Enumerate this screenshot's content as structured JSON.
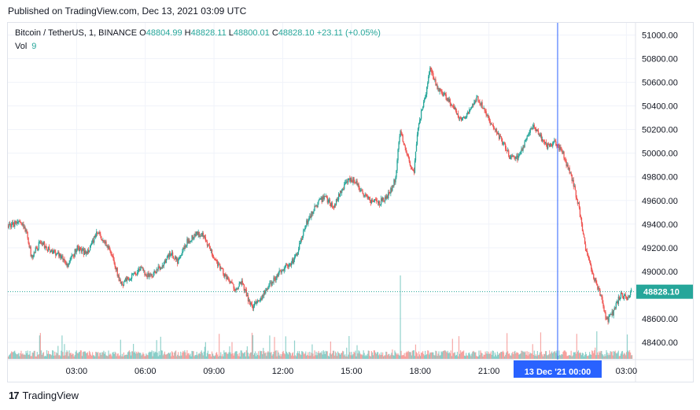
{
  "header": {
    "published": "Published on TradingView.com, Dec 13, 2021 03:09 UTC"
  },
  "legend": {
    "symbol": "Bitcoin / TetherUS, 1, BINANCE",
    "o_label": "O",
    "o_value": "48804.99",
    "h_label": "H",
    "h_value": "48828.11",
    "l_label": "L",
    "l_value": "48800.01",
    "c_label": "C",
    "c_value": "48828.10",
    "change": "+23.11 (+0.05%)",
    "vol_label": "Vol",
    "vol_value": "9"
  },
  "footer": {
    "brand": "TradingView",
    "logo_glyph": "17"
  },
  "chart_data": {
    "type": "candlestick",
    "title": "Bitcoin / TetherUS, 1, BINANCE",
    "interval": "1 minute",
    "ylim": [
      48200,
      51050
    ],
    "y_ticks": [
      48400,
      48600,
      48800,
      49000,
      49200,
      49400,
      49600,
      49800,
      50000,
      50200,
      50400,
      50600,
      50800,
      51000
    ],
    "y_tick_labels": [
      "48400.00",
      "48600.00",
      "48800.00",
      "49000.00",
      "49200.00",
      "49400.00",
      "49600.00",
      "49800.00",
      "50000.00",
      "50200.00",
      "50400.00",
      "50600.00",
      "50800.00",
      "51000.00"
    ],
    "x_range_hours": [
      0.0,
      27.4
    ],
    "x_ticks": [
      3,
      6,
      9,
      12,
      15,
      18,
      21,
      27
    ],
    "x_tick_labels": [
      "03:00",
      "06:00",
      "09:00",
      "12:00",
      "15:00",
      "18:00",
      "21:00",
      "03:00"
    ],
    "crosshair_hour": 24.0,
    "crosshair_label": "13 Dec '21   00:00",
    "last_price": 48828.1,
    "last_price_label": "48828.10",
    "price_path": [
      [
        0.0,
        49380
      ],
      [
        0.4,
        49420
      ],
      [
        0.8,
        49350
      ],
      [
        1.0,
        49120
      ],
      [
        1.4,
        49250
      ],
      [
        1.8,
        49180
      ],
      [
        2.2,
        49150
      ],
      [
        2.6,
        49050
      ],
      [
        3.0,
        49200
      ],
      [
        3.4,
        49150
      ],
      [
        3.9,
        49330
      ],
      [
        4.3,
        49220
      ],
      [
        4.6,
        49100
      ],
      [
        4.9,
        48880
      ],
      [
        5.3,
        48950
      ],
      [
        5.8,
        49020
      ],
      [
        6.2,
        48950
      ],
      [
        6.7,
        49050
      ],
      [
        7.1,
        49150
      ],
      [
        7.4,
        49080
      ],
      [
        7.8,
        49250
      ],
      [
        8.2,
        49320
      ],
      [
        8.5,
        49300
      ],
      [
        8.8,
        49180
      ],
      [
        9.2,
        49050
      ],
      [
        9.6,
        48920
      ],
      [
        9.9,
        48860
      ],
      [
        10.2,
        48900
      ],
      [
        10.6,
        48700
      ],
      [
        10.9,
        48750
      ],
      [
        11.3,
        48850
      ],
      [
        11.7,
        48960
      ],
      [
        12.0,
        49030
      ],
      [
        12.3,
        49050
      ],
      [
        12.6,
        49150
      ],
      [
        13.0,
        49400
      ],
      [
        13.4,
        49550
      ],
      [
        13.8,
        49630
      ],
      [
        14.2,
        49550
      ],
      [
        14.5,
        49670
      ],
      [
        14.8,
        49760
      ],
      [
        15.1,
        49780
      ],
      [
        15.4,
        49680
      ],
      [
        15.8,
        49600
      ],
      [
        16.2,
        49580
      ],
      [
        16.6,
        49650
      ],
      [
        16.9,
        49780
      ],
      [
        17.1,
        50200
      ],
      [
        17.4,
        50000
      ],
      [
        17.7,
        49820
      ],
      [
        17.9,
        50250
      ],
      [
        18.2,
        50460
      ],
      [
        18.4,
        50720
      ],
      [
        18.7,
        50560
      ],
      [
        19.1,
        50480
      ],
      [
        19.5,
        50360
      ],
      [
        19.8,
        50280
      ],
      [
        20.1,
        50360
      ],
      [
        20.5,
        50470
      ],
      [
        20.8,
        50350
      ],
      [
        21.1,
        50230
      ],
      [
        21.6,
        50090
      ],
      [
        21.9,
        49960
      ],
      [
        22.3,
        49970
      ],
      [
        22.6,
        50120
      ],
      [
        22.9,
        50240
      ],
      [
        23.2,
        50150
      ],
      [
        23.5,
        50060
      ],
      [
        23.9,
        50090
      ],
      [
        24.2,
        50000
      ],
      [
        24.6,
        49790
      ],
      [
        24.9,
        49550
      ],
      [
        25.2,
        49180
      ],
      [
        25.5,
        48980
      ],
      [
        25.9,
        48780
      ],
      [
        26.1,
        48580
      ],
      [
        26.4,
        48650
      ],
      [
        26.7,
        48800
      ],
      [
        27.0,
        48770
      ],
      [
        27.2,
        48828
      ]
    ],
    "volume_spikes": [
      {
        "hour": 17.1,
        "rel": 1.0
      },
      {
        "hour": 25.7,
        "rel": 0.33
      },
      {
        "hour": 11.4,
        "rel": 0.28
      },
      {
        "hour": 12.1,
        "rel": 0.27
      },
      {
        "hour": 12.5,
        "rel": 0.22
      },
      {
        "hour": 24.8,
        "rel": 0.3
      }
    ]
  }
}
